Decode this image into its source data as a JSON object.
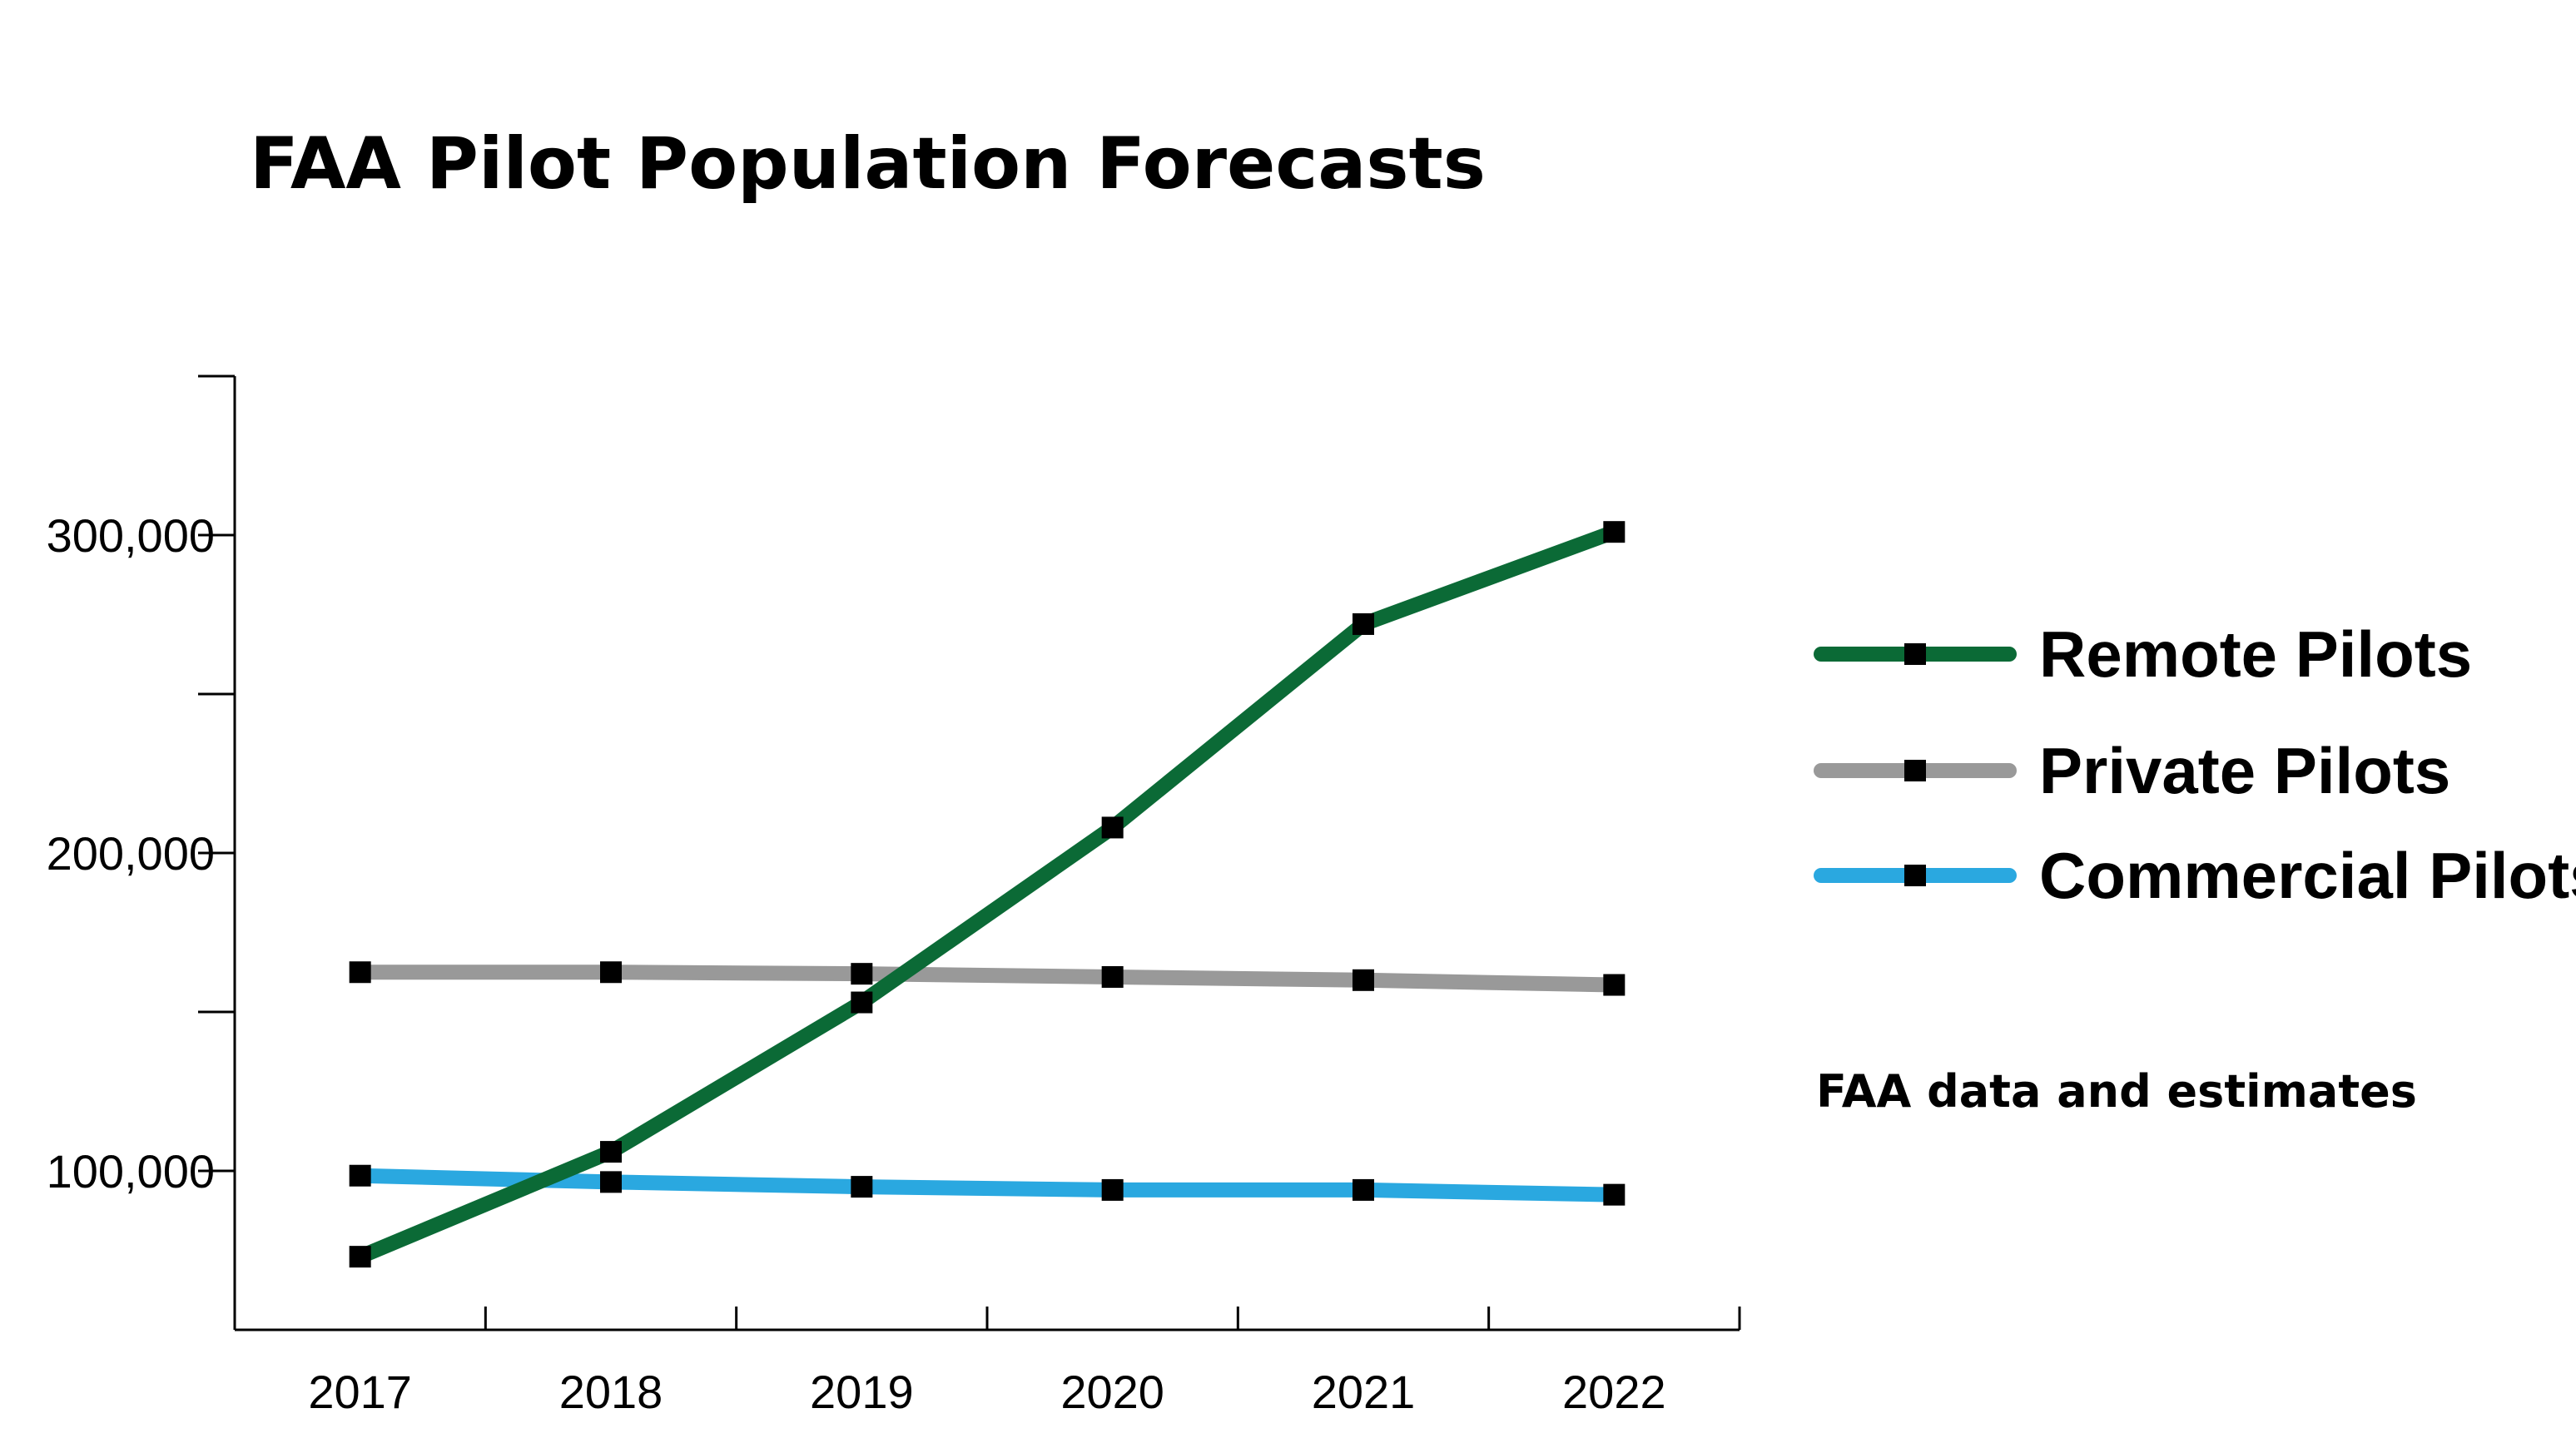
{
  "chart_data": {
    "type": "line",
    "title": "FAA Pilot Population Forecasts",
    "xlabel": "",
    "ylabel": "",
    "categories": [
      "2017",
      "2018",
      "2019",
      "2020",
      "2021",
      "2022"
    ],
    "ylim": [
      50000,
      350000
    ],
    "y_ticks": [
      100000,
      150000,
      200000,
      250000,
      300000,
      350000
    ],
    "y_tick_labels": [
      "100,000",
      "",
      "200,000",
      "",
      "300,000",
      ""
    ],
    "grid": false,
    "legend_position": "right",
    "note": "FAA data and estimates",
    "series": [
      {
        "name": "Remote Pilots",
        "color": "#0b6a36",
        "values": [
          73000,
          106000,
          153000,
          208000,
          272000,
          301000
        ]
      },
      {
        "name": "Private Pilots",
        "color": "#999999",
        "values": [
          162500,
          162500,
          162000,
          161000,
          160000,
          158500
        ]
      },
      {
        "name": "Commercial Pilots",
        "color": "#2aa8e0",
        "values": [
          98500,
          96500,
          95000,
          94000,
          94000,
          92500
        ]
      }
    ]
  }
}
